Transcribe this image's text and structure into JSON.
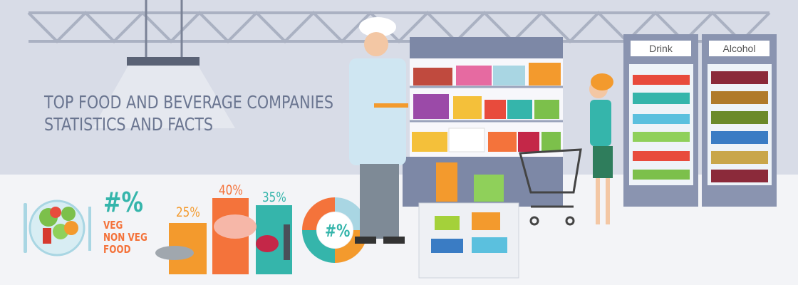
{
  "title": {
    "line1": "TOP FOOD AND BEVERAGE COMPANIES",
    "line2": "STATISTICS AND FACTS"
  },
  "plate_stat": {
    "value": "#%",
    "line1": "VEG",
    "line2": "NON VEG",
    "line3": "FOOD"
  },
  "bars": [
    {
      "label": "25%",
      "value": 25,
      "color": "#f39a2d"
    },
    {
      "label": "40%",
      "value": 40,
      "color": "#f4733b"
    },
    {
      "label": "35%",
      "value": 35,
      "color": "#35b5ab"
    }
  ],
  "donut": {
    "label": "#%",
    "colors": [
      "#f4733b",
      "#a9d6e3",
      "#f39a2d",
      "#35b5ab"
    ]
  },
  "fridges": {
    "left": "Drink",
    "right": "Alcohol"
  },
  "colors": {
    "accent_teal": "#35b5ab",
    "accent_orange": "#f4733b",
    "title": "#6a7590"
  }
}
